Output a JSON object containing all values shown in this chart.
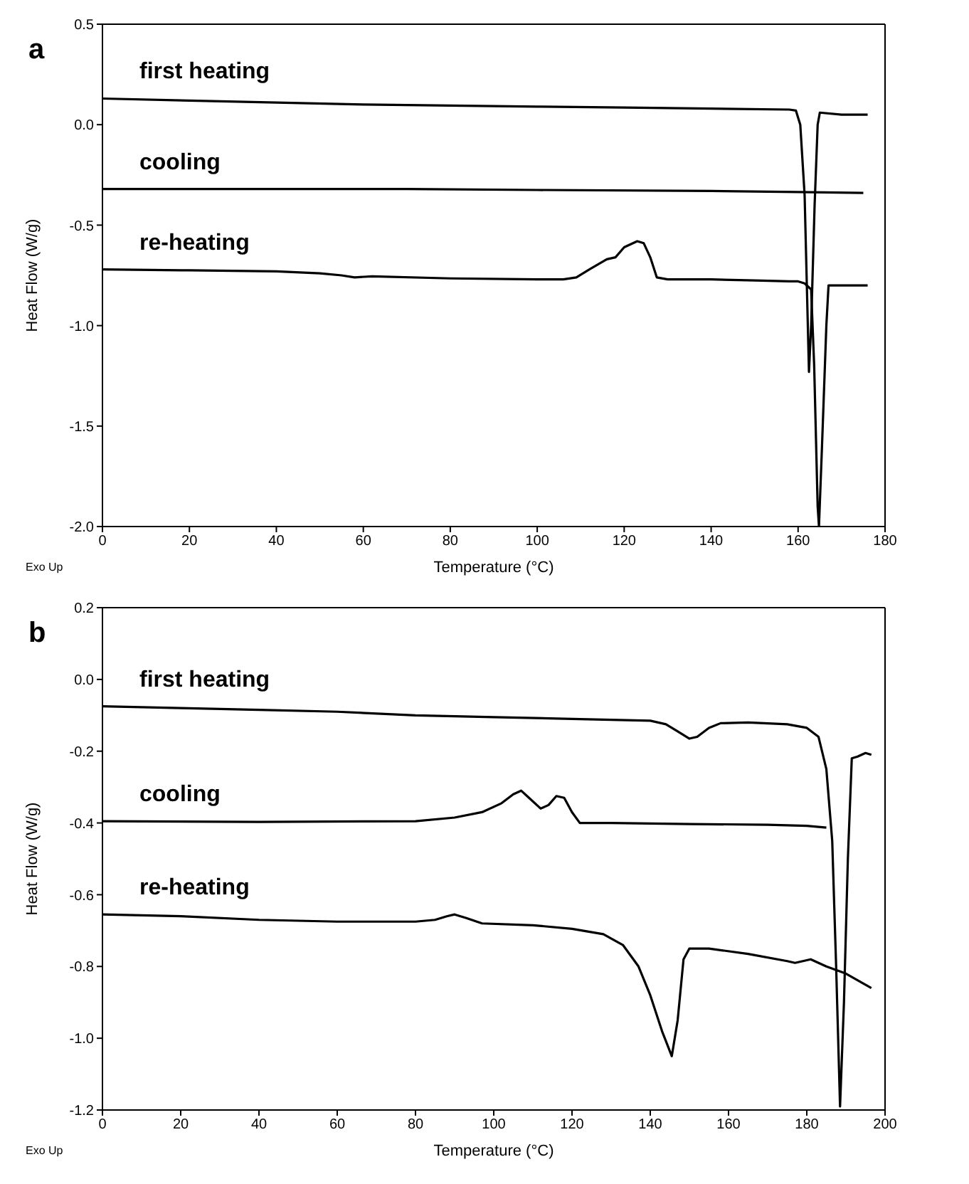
{
  "chart_data": [
    {
      "type": "line",
      "title": "a",
      "xlabel": "Temperature (°C)",
      "ylabel": "Heat Flow (W/g)",
      "annotations": [
        "Exo Up"
      ],
      "xlim": [
        0,
        180
      ],
      "xticks": [
        0,
        20,
        40,
        60,
        80,
        100,
        120,
        140,
        160,
        180
      ],
      "ylim": [
        -2.0,
        0.5
      ],
      "yticks": [
        {
          "value": 0.5,
          "label": "0.5"
        },
        {
          "value": 0,
          "label": "0.0"
        },
        {
          "value": -0.5,
          "label": "-0.5"
        },
        {
          "value": -1,
          "label": "-1.0"
        },
        {
          "value": -1.5,
          "label": "-1.5"
        },
        {
          "value": -2,
          "label": "-2.0"
        }
      ],
      "marker": "none",
      "line_style": "solid",
      "series": [
        {
          "name": "first heating",
          "color": "#000000",
          "x": [
            0,
            20,
            40,
            60,
            80,
            100,
            120,
            140,
            158,
            159.5,
            160.5,
            161.5,
            162.5,
            163,
            163.8,
            164.5,
            165,
            170,
            176
          ],
          "values": [
            0.13,
            0.12,
            0.11,
            0.1,
            0.095,
            0.09,
            0.085,
            0.08,
            0.075,
            0.07,
            0.0,
            -0.35,
            -1.23,
            -1.0,
            -0.4,
            0.0,
            0.06,
            0.05,
            0.05
          ]
        },
        {
          "name": "cooling",
          "color": "#000000",
          "x": [
            0,
            40,
            70,
            100,
            140,
            160,
            175
          ],
          "values": [
            -0.32,
            -0.32,
            -0.32,
            -0.325,
            -0.33,
            -0.335,
            -0.34
          ]
        },
        {
          "name": "re-heating",
          "color": "#000000",
          "x": [
            0,
            20,
            40,
            50,
            55,
            58,
            62,
            80,
            100,
            106,
            109,
            112,
            116,
            118,
            120,
            123,
            124.5,
            126,
            127.5,
            130,
            140,
            150,
            158,
            160,
            161.5,
            163,
            163.7,
            164.5,
            164.8,
            165.5,
            166.5,
            167,
            170,
            176
          ],
          "values": [
            -0.72,
            -0.725,
            -0.73,
            -0.74,
            -0.75,
            -0.76,
            -0.755,
            -0.765,
            -0.77,
            -0.77,
            -0.76,
            -0.72,
            -0.67,
            -0.66,
            -0.61,
            -0.58,
            -0.59,
            -0.66,
            -0.76,
            -0.77,
            -0.77,
            -0.775,
            -0.78,
            -0.78,
            -0.79,
            -0.82,
            -1.2,
            -1.9,
            -2.0,
            -1.6,
            -1.0,
            -0.8,
            -0.8,
            -0.8
          ]
        }
      ]
    },
    {
      "type": "line",
      "title": "b",
      "xlabel": "Temperature (°C)",
      "ylabel": "Heat Flow (W/g)",
      "annotations": [
        "Exo Up"
      ],
      "xlim": [
        0,
        200
      ],
      "xticks": [
        0,
        20,
        40,
        60,
        80,
        100,
        120,
        140,
        160,
        180,
        200
      ],
      "ylim": [
        -1.2,
        0.2
      ],
      "yticks": [
        {
          "value": 0.2,
          "label": "0.2"
        },
        {
          "value": 0,
          "label": "0.0"
        },
        {
          "value": -0.2,
          "label": "-0.2"
        },
        {
          "value": -0.4,
          "label": "-0.4"
        },
        {
          "value": -0.6,
          "label": "-0.6"
        },
        {
          "value": -0.8,
          "label": "-0.8"
        },
        {
          "value": -1,
          "label": "-1.0"
        },
        {
          "value": -1.2,
          "label": "-1.2"
        }
      ],
      "marker": "none",
      "line_style": "solid",
      "series": [
        {
          "name": "first heating",
          "color": "#000000",
          "x": [
            0,
            20,
            40,
            60,
            80,
            100,
            120,
            140,
            144,
            147,
            150,
            152,
            155,
            158,
            165,
            175,
            180,
            183,
            185,
            186.5,
            187.5,
            188.5,
            189.5,
            190.5,
            191.5,
            193,
            195,
            196.5
          ],
          "values": [
            -0.075,
            -0.08,
            -0.085,
            -0.09,
            -0.1,
            -0.105,
            -0.11,
            -0.115,
            -0.125,
            -0.145,
            -0.165,
            -0.16,
            -0.135,
            -0.122,
            -0.12,
            -0.125,
            -0.135,
            -0.16,
            -0.25,
            -0.45,
            -0.8,
            -1.19,
            -0.9,
            -0.5,
            -0.22,
            -0.215,
            -0.205,
            -0.21
          ]
        },
        {
          "name": "cooling",
          "color": "#000000",
          "x": [
            0,
            40,
            80,
            90,
            97,
            102,
            105,
            107,
            109,
            112,
            114,
            116,
            118,
            120,
            122,
            130,
            150,
            170,
            180,
            185
          ],
          "values": [
            -0.395,
            -0.397,
            -0.395,
            -0.385,
            -0.37,
            -0.345,
            -0.32,
            -0.31,
            -0.33,
            -0.36,
            -0.35,
            -0.325,
            -0.33,
            -0.37,
            -0.4,
            -0.4,
            -0.403,
            -0.405,
            -0.408,
            -0.413
          ]
        },
        {
          "name": "re-heating",
          "color": "#000000",
          "x": [
            0,
            20,
            40,
            60,
            80,
            85,
            88,
            90,
            93,
            97,
            110,
            120,
            128,
            133,
            137,
            140,
            143,
            145.5,
            147,
            148.5,
            150,
            155,
            165,
            175,
            177,
            181,
            185,
            190,
            196.5
          ],
          "values": [
            -0.655,
            -0.66,
            -0.67,
            -0.675,
            -0.675,
            -0.67,
            -0.66,
            -0.655,
            -0.665,
            -0.68,
            -0.685,
            -0.695,
            -0.71,
            -0.74,
            -0.8,
            -0.88,
            -0.98,
            -1.05,
            -0.95,
            -0.78,
            -0.75,
            -0.75,
            -0.765,
            -0.785,
            -0.79,
            -0.78,
            -0.8,
            -0.82,
            -0.86
          ]
        }
      ]
    }
  ]
}
